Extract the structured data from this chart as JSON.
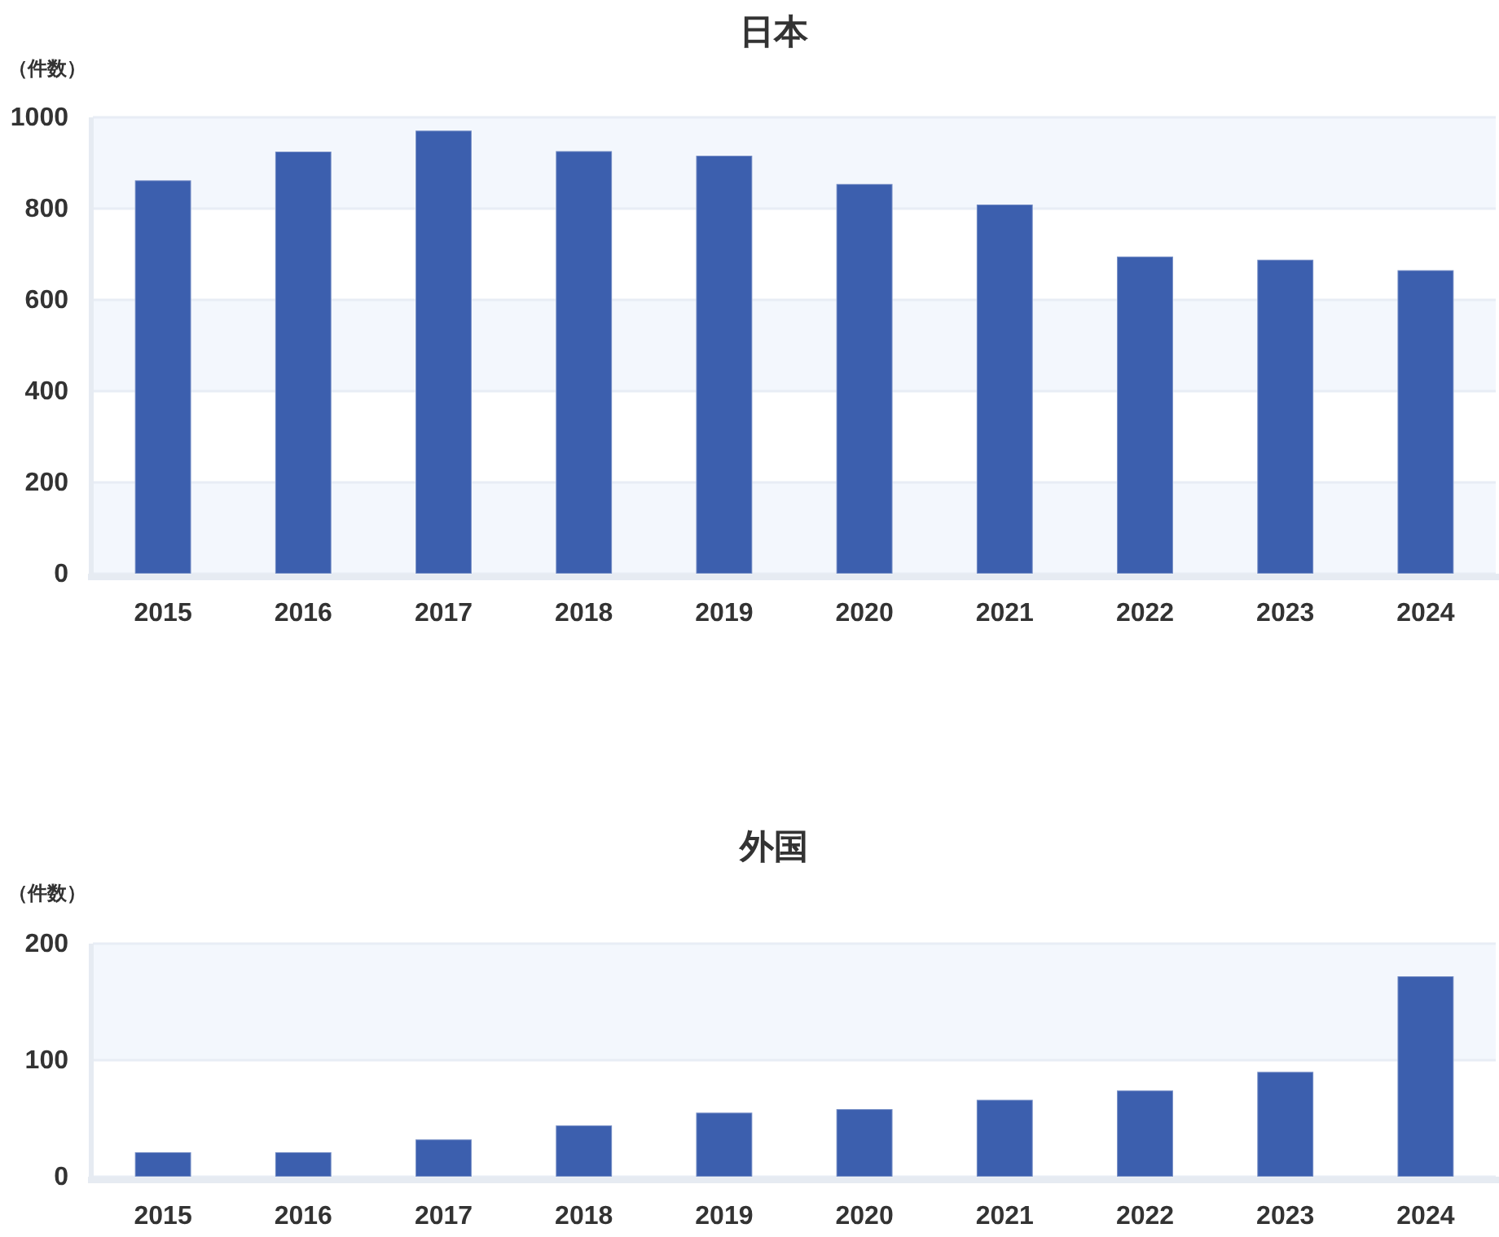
{
  "chart_data": [
    {
      "type": "bar",
      "title": "日本",
      "ylabel": "（件数）",
      "categories": [
        "2015",
        "2016",
        "2017",
        "2018",
        "2019",
        "2020",
        "2021",
        "2022",
        "2023",
        "2024"
      ],
      "values": [
        862,
        925,
        971,
        926,
        916,
        854,
        809,
        695,
        688,
        665
      ],
      "color": "#3c5fae",
      "ylim": [
        0,
        1000
      ],
      "yticks": [
        0,
        200,
        400,
        600,
        800,
        1000
      ],
      "grid": "y",
      "bands": [
        {
          "axis": "y",
          "from": 800,
          "to": 1000,
          "color": "#f3f7fd"
        },
        {
          "axis": "y",
          "from": 400,
          "to": 600,
          "color": "#f3f7fd"
        },
        {
          "axis": "y",
          "from": 0,
          "to": 200,
          "color": "#f3f7fd"
        }
      ]
    },
    {
      "type": "bar",
      "title": "外国",
      "ylabel": "（件数）",
      "categories": [
        "2015",
        "2016",
        "2017",
        "2018",
        "2019",
        "2020",
        "2021",
        "2022",
        "2023",
        "2024"
      ],
      "values": [
        21,
        21,
        32,
        44,
        55,
        58,
        66,
        74,
        90,
        172
      ],
      "color": "#3c5fae",
      "ylim": [
        0,
        200
      ],
      "yticks": [
        0,
        100,
        200
      ],
      "grid": "y",
      "bands": [
        {
          "axis": "y",
          "from": 100,
          "to": 200,
          "color": "#f3f7fd"
        }
      ]
    }
  ]
}
